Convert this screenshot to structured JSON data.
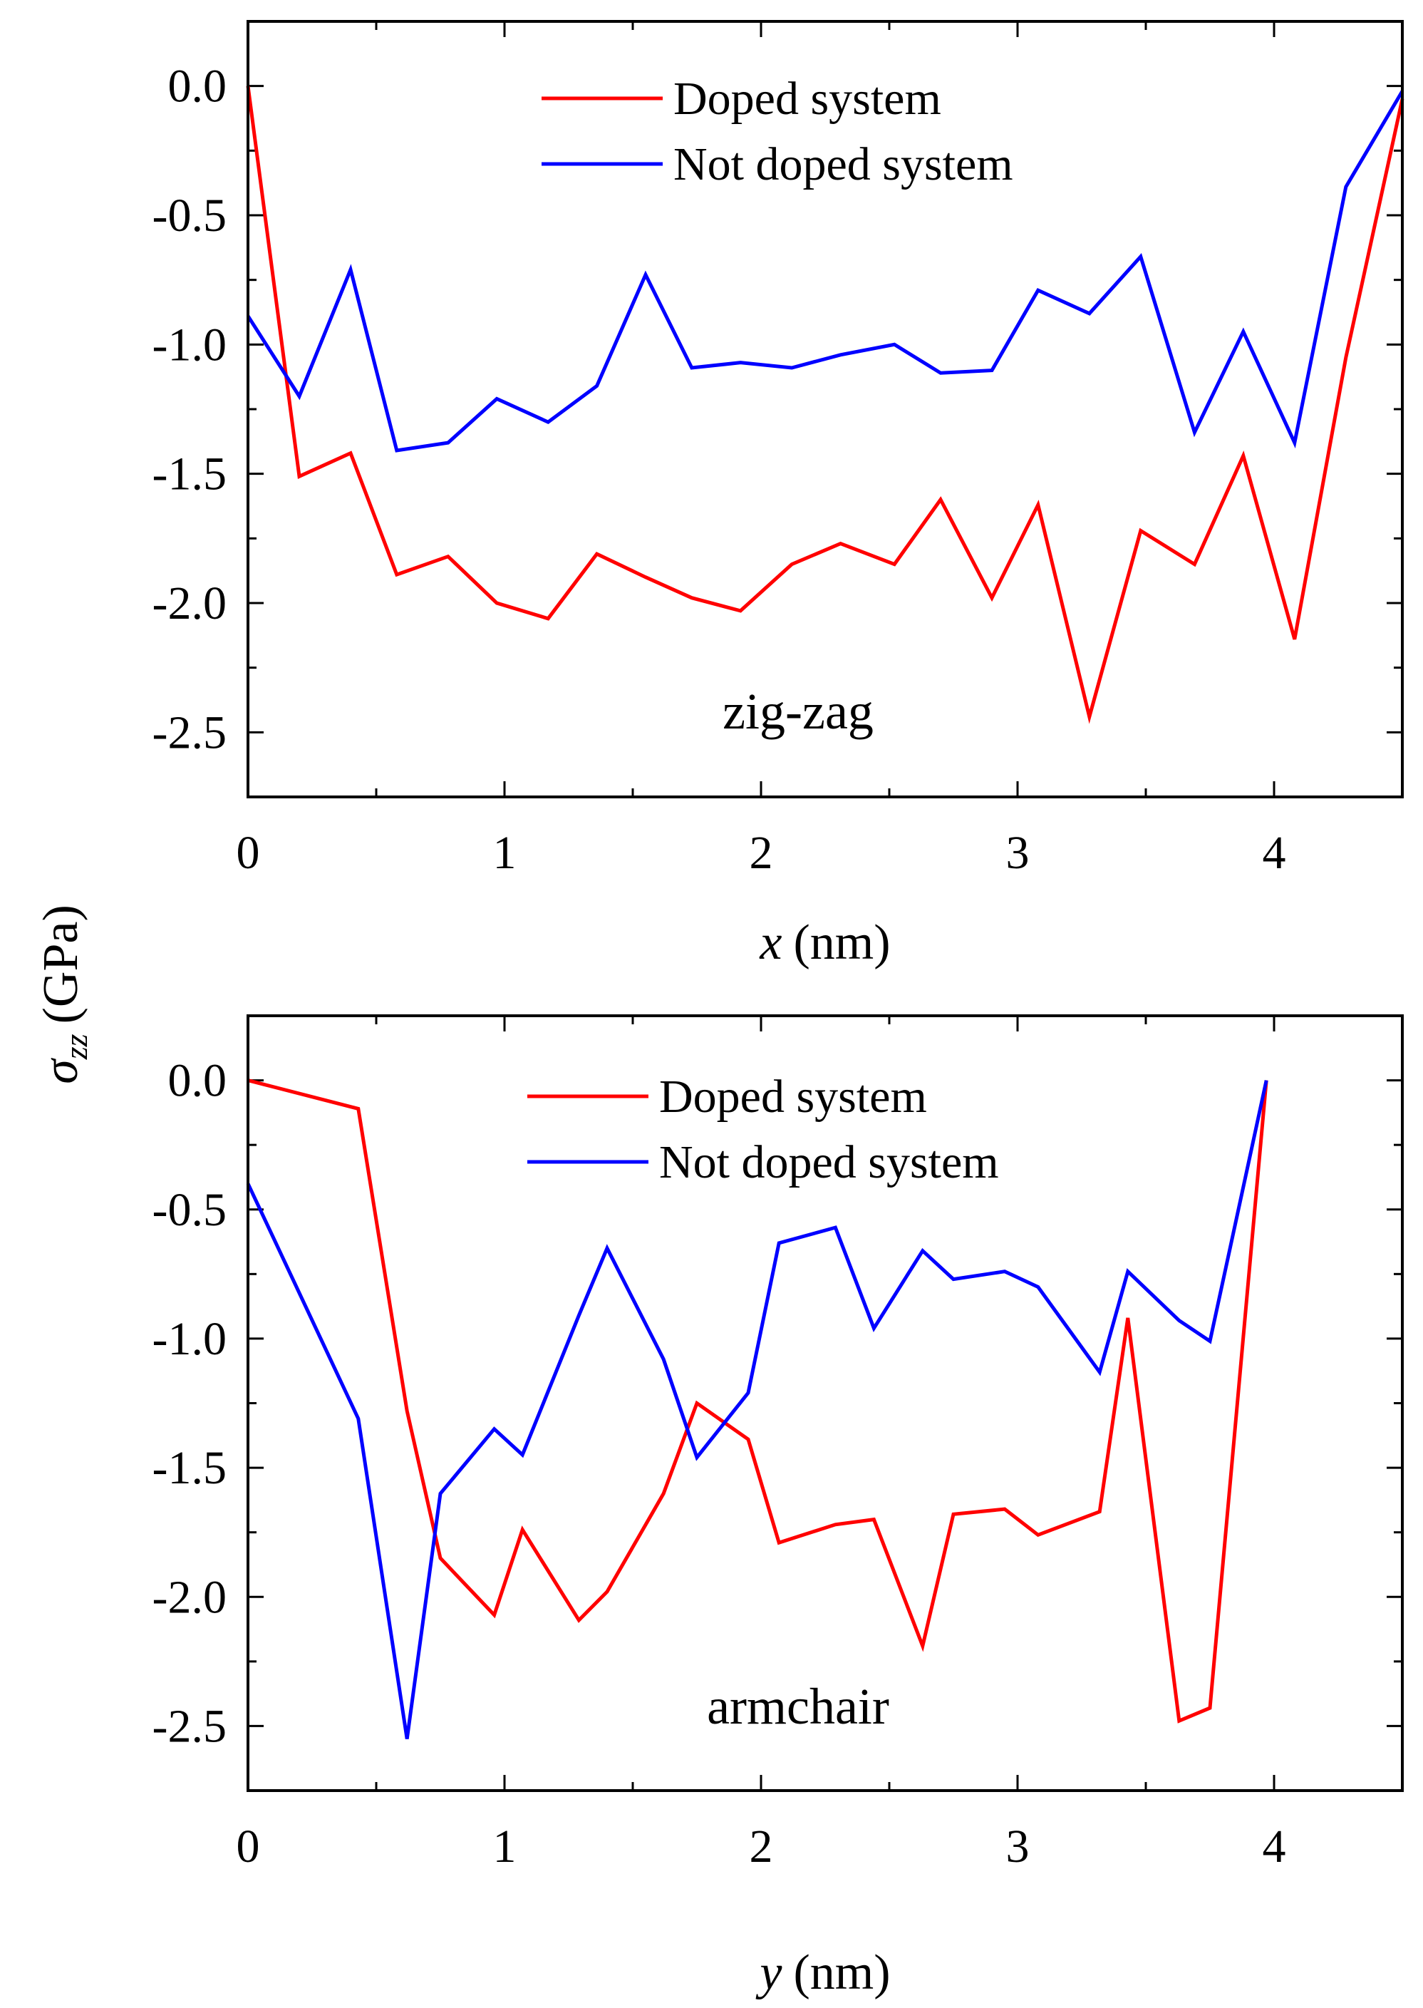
{
  "figure": {
    "shared_ylabel_symbol": "σ",
    "shared_ylabel_subscript": "zz",
    "shared_ylabel_unit": "(GPa)"
  },
  "chart_data": [
    {
      "type": "line",
      "annotation": "zig-zag",
      "xlabel_var": "x",
      "xlabel_unit": "(nm)",
      "xlim": [
        0,
        4.5
      ],
      "ylim": [
        -2.75,
        0.25
      ],
      "xticks": [
        0,
        1,
        2,
        3,
        4
      ],
      "xtick_labels": [
        "0",
        "1",
        "2",
        "3",
        "4"
      ],
      "yticks": [
        0.0,
        -0.5,
        -1.0,
        -1.5,
        -2.0,
        -2.5
      ],
      "ytick_labels": [
        "0.0",
        "-0.5",
        "-1.0",
        "-1.5",
        "-2.0",
        "-2.5"
      ],
      "legend_position": "top-center",
      "series": [
        {
          "name": "Doped system",
          "color": "#ff0000",
          "x": [
            0,
            0.2,
            0.4,
            0.58,
            0.78,
            0.97,
            1.17,
            1.36,
            1.55,
            1.73,
            1.92,
            2.12,
            2.31,
            2.52,
            2.7,
            2.9,
            3.08,
            3.28,
            3.48,
            3.69,
            3.88,
            4.08,
            4.28,
            4.5
          ],
          "y": [
            0.0,
            -1.51,
            -1.42,
            -1.89,
            -1.82,
            -2.0,
            -2.06,
            -1.81,
            -1.9,
            -1.98,
            -2.03,
            -1.85,
            -1.77,
            -1.85,
            -1.6,
            -1.98,
            -1.62,
            -2.44,
            -1.72,
            -1.85,
            -1.43,
            -2.14,
            -1.05,
            -0.05
          ]
        },
        {
          "name": "Not doped system",
          "color": "#0000ff",
          "x": [
            0,
            0.2,
            0.4,
            0.58,
            0.78,
            0.97,
            1.17,
            1.36,
            1.55,
            1.73,
            1.92,
            2.12,
            2.31,
            2.52,
            2.7,
            2.9,
            3.08,
            3.28,
            3.48,
            3.69,
            3.88,
            4.08,
            4.28,
            4.5
          ],
          "y": [
            -0.89,
            -1.2,
            -0.71,
            -1.41,
            -1.38,
            -1.21,
            -1.3,
            -1.16,
            -0.73,
            -1.09,
            -1.07,
            -1.09,
            -1.04,
            -1.0,
            -1.11,
            -1.1,
            -0.79,
            -0.88,
            -0.66,
            -1.34,
            -0.95,
            -1.38,
            -0.39,
            -0.02
          ]
        }
      ]
    },
    {
      "type": "line",
      "annotation": "armchair",
      "xlabel_var": "y",
      "xlabel_unit": "(nm)",
      "xlim": [
        0,
        4.5
      ],
      "ylim": [
        -2.75,
        0.25
      ],
      "xticks": [
        0,
        1,
        2,
        3,
        4
      ],
      "xtick_labels": [
        "0",
        "1",
        "2",
        "3",
        "4"
      ],
      "yticks": [
        0.0,
        -0.5,
        -1.0,
        -1.5,
        -2.0,
        -2.5
      ],
      "ytick_labels": [
        "0.0",
        "-0.5",
        "-1.0",
        "-1.5",
        "-2.0",
        "-2.5"
      ],
      "legend_position": "top-center",
      "series": [
        {
          "name": "Doped system",
          "color": "#ff0000",
          "x": [
            0,
            0.43,
            0.62,
            0.75,
            0.96,
            1.07,
            1.29,
            1.4,
            1.62,
            1.75,
            1.95,
            2.07,
            2.29,
            2.44,
            2.63,
            2.75,
            2.95,
            3.08,
            3.32,
            3.43,
            3.63,
            3.75,
            3.97
          ],
          "y": [
            0.0,
            -0.11,
            -1.28,
            -1.85,
            -2.07,
            -1.74,
            -2.09,
            -1.98,
            -1.6,
            -1.25,
            -1.39,
            -1.79,
            -1.72,
            -1.7,
            -2.19,
            -1.68,
            -1.66,
            -1.76,
            -1.67,
            -0.92,
            -2.48,
            -2.43,
            0.0
          ]
        },
        {
          "name": "Not doped system",
          "color": "#0000ff",
          "x": [
            0,
            0.43,
            0.62,
            0.75,
            0.96,
            1.07,
            1.29,
            1.4,
            1.62,
            1.75,
            1.95,
            2.07,
            2.29,
            2.44,
            2.63,
            2.75,
            2.95,
            3.08,
            3.32,
            3.43,
            3.63,
            3.75,
            3.97
          ],
          "y": [
            -0.4,
            -1.31,
            -2.55,
            -1.6,
            -1.35,
            -1.45,
            -0.91,
            -0.65,
            -1.08,
            -1.46,
            -1.21,
            -0.63,
            -0.57,
            -0.96,
            -0.66,
            -0.77,
            -0.74,
            -0.8,
            -1.13,
            -0.74,
            -0.93,
            -1.01,
            0.0
          ]
        }
      ]
    }
  ]
}
